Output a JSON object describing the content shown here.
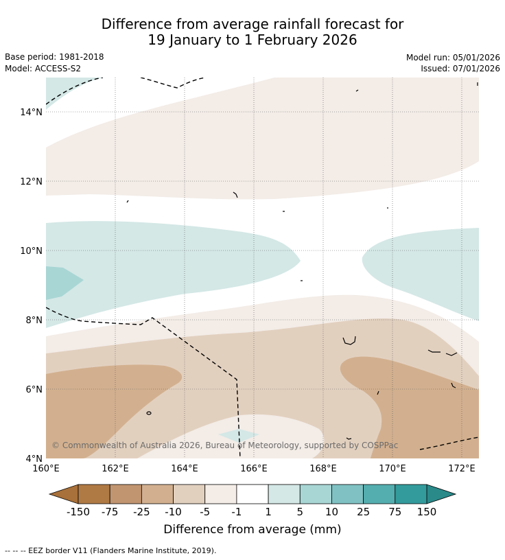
{
  "header": {
    "title_line1": "Difference from average rainfall forecast for",
    "title_line2": "19 January to 1 February 2026",
    "base_period": "Base period: 1981-2018",
    "model": "Model: ACCESS-S2",
    "model_run": "Model run: 05/01/2026",
    "issued": "Issued: 07/01/2026"
  },
  "map": {
    "lat_range": [
      4,
      15
    ],
    "lon_range": [
      160,
      172.5
    ],
    "lat_ticks": [
      "4°N",
      "6°N",
      "8°N",
      "10°N",
      "12°N",
      "14°N"
    ],
    "lon_ticks": [
      "160°E",
      "162°E",
      "164°E",
      "166°E",
      "168°E",
      "170°E",
      "172°E"
    ],
    "copyright": "© Commonwealth of Australia 2026, Bureau of Meteorology, supported by COSPPac"
  },
  "colorbar": {
    "label": "Difference from average (mm)",
    "ticks": [
      "-150",
      "-75",
      "-25",
      "-10",
      "-5",
      "-1",
      "1",
      "5",
      "10",
      "25",
      "75",
      "150"
    ],
    "colors": [
      "#a8703a",
      "#b07a45",
      "#c19570",
      "#d2b08f",
      "#e2d0bf",
      "#f3ece7",
      "#ffffff",
      "#d4e8e6",
      "#a8d6d5",
      "#80c2c3",
      "#54aeaf",
      "#339b9c",
      "#2a8a8a"
    ]
  },
  "footnote": "--  --  -- EEZ border V11 (Flanders Marine Institute, 2019)."
}
